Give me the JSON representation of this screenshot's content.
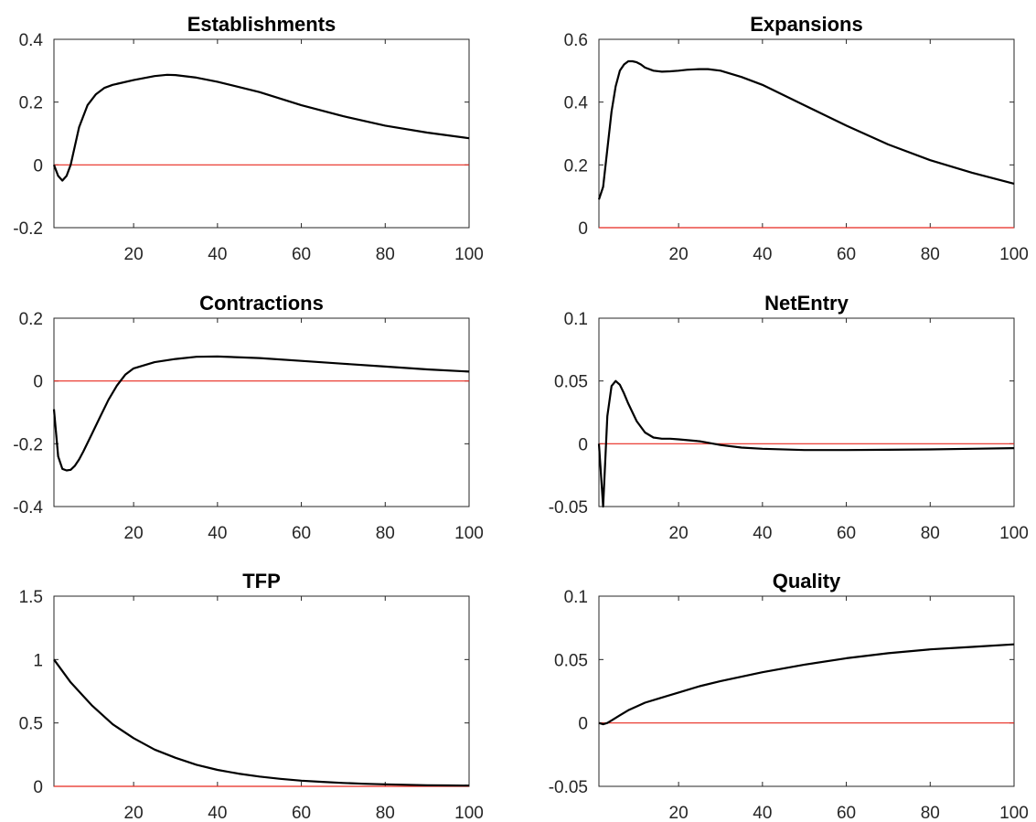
{
  "colors": {
    "series": "#000000",
    "zero_line": "#e8281e",
    "axes": "#262626"
  },
  "chart_data": [
    {
      "type": "line",
      "title": "Establishments",
      "xlim": [
        1,
        100
      ],
      "ylim": [
        -0.2,
        0.4
      ],
      "xticks": [
        20,
        40,
        60,
        80,
        100
      ],
      "yticks": [
        -0.2,
        0,
        0.2,
        0.4
      ],
      "ytick_labels": [
        "-0.2",
        "0",
        "0.2",
        "0.4"
      ],
      "reference_line": 0,
      "x": [
        1,
        2,
        3,
        4,
        5,
        7,
        9,
        11,
        13,
        15,
        20,
        25,
        28,
        30,
        35,
        40,
        50,
        60,
        70,
        80,
        90,
        100
      ],
      "y": [
        0.0,
        -0.035,
        -0.05,
        -0.035,
        0.0,
        0.12,
        0.19,
        0.225,
        0.245,
        0.255,
        0.27,
        0.283,
        0.287,
        0.286,
        0.278,
        0.265,
        0.232,
        0.19,
        0.155,
        0.125,
        0.103,
        0.085
      ]
    },
    {
      "type": "line",
      "title": "Expansions",
      "xlim": [
        1,
        100
      ],
      "ylim": [
        0,
        0.6
      ],
      "xticks": [
        20,
        40,
        60,
        80,
        100
      ],
      "yticks": [
        0,
        0.2,
        0.4,
        0.6
      ],
      "ytick_labels": [
        "0",
        "0.2",
        "0.4",
        "0.6"
      ],
      "reference_line": 0,
      "x": [
        1,
        2,
        3,
        4,
        5,
        6,
        7,
        8,
        9,
        10,
        11,
        12,
        14,
        16,
        18,
        20,
        22,
        25,
        27,
        30,
        35,
        40,
        50,
        60,
        70,
        80,
        90,
        100
      ],
      "y": [
        0.09,
        0.13,
        0.25,
        0.37,
        0.45,
        0.5,
        0.52,
        0.53,
        0.53,
        0.527,
        0.52,
        0.51,
        0.5,
        0.497,
        0.498,
        0.5,
        0.503,
        0.505,
        0.505,
        0.5,
        0.48,
        0.455,
        0.39,
        0.325,
        0.265,
        0.215,
        0.175,
        0.14
      ]
    },
    {
      "type": "line",
      "title": "Contractions",
      "xlim": [
        1,
        100
      ],
      "ylim": [
        -0.4,
        0.2
      ],
      "xticks": [
        20,
        40,
        60,
        80,
        100
      ],
      "yticks": [
        -0.4,
        -0.2,
        0,
        0.2
      ],
      "ytick_labels": [
        "-0.4",
        "-0.2",
        "0",
        "0.2"
      ],
      "reference_line": 0,
      "x": [
        1,
        2,
        3,
        4,
        5,
        6,
        7,
        8,
        10,
        12,
        14,
        16,
        18,
        20,
        25,
        30,
        35,
        40,
        50,
        60,
        70,
        80,
        90,
        100
      ],
      "y": [
        -0.09,
        -0.24,
        -0.28,
        -0.285,
        -0.283,
        -0.27,
        -0.25,
        -0.225,
        -0.17,
        -0.115,
        -0.06,
        -0.015,
        0.02,
        0.04,
        0.06,
        0.07,
        0.077,
        0.078,
        0.073,
        0.064,
        0.055,
        0.046,
        0.037,
        0.03
      ]
    },
    {
      "type": "line",
      "title": "NetEntry",
      "xlim": [
        1,
        100
      ],
      "ylim": [
        -0.05,
        0.1
      ],
      "xticks": [
        20,
        40,
        60,
        80,
        100
      ],
      "yticks": [
        -0.05,
        0,
        0.05,
        0.1
      ],
      "ytick_labels": [
        "-0.05",
        "0",
        "0.05",
        "0.1"
      ],
      "reference_line": 0,
      "x": [
        1,
        2,
        3,
        4,
        5,
        6,
        7,
        8,
        10,
        12,
        14,
        16,
        18,
        20,
        25,
        30,
        35,
        40,
        50,
        60,
        70,
        80,
        90,
        100
      ],
      "y": [
        0.0,
        -0.05,
        0.022,
        0.046,
        0.05,
        0.047,
        0.04,
        0.032,
        0.018,
        0.009,
        0.005,
        0.004,
        0.004,
        0.0035,
        0.002,
        -0.001,
        -0.003,
        -0.004,
        -0.005,
        -0.005,
        -0.0048,
        -0.0045,
        -0.004,
        -0.0035
      ]
    },
    {
      "type": "line",
      "title": "TFP",
      "xlim": [
        1,
        100
      ],
      "ylim": [
        0,
        1.5
      ],
      "xticks": [
        20,
        40,
        60,
        80,
        100
      ],
      "yticks": [
        0,
        0.5,
        1,
        1.5
      ],
      "ytick_labels": [
        "0",
        "0.5",
        "1",
        "1.5"
      ],
      "reference_line": 0,
      "x": [
        1,
        5,
        10,
        15,
        20,
        25,
        30,
        35,
        40,
        45,
        50,
        55,
        60,
        65,
        70,
        75,
        80,
        85,
        90,
        95,
        100
      ],
      "y": [
        1.0,
        0.82,
        0.64,
        0.49,
        0.38,
        0.29,
        0.225,
        0.17,
        0.13,
        0.1,
        0.077,
        0.059,
        0.045,
        0.035,
        0.027,
        0.02,
        0.016,
        0.012,
        0.009,
        0.007,
        0.006
      ]
    },
    {
      "type": "line",
      "title": "Quality",
      "xlim": [
        1,
        100
      ],
      "ylim": [
        -0.05,
        0.1
      ],
      "xticks": [
        20,
        40,
        60,
        80,
        100
      ],
      "yticks": [
        -0.05,
        0,
        0.05,
        0.1
      ],
      "ytick_labels": [
        "-0.05",
        "0",
        "0.05",
        "0.1"
      ],
      "reference_line": 0,
      "x": [
        1,
        2,
        3,
        4,
        6,
        8,
        10,
        12,
        15,
        20,
        25,
        30,
        40,
        50,
        60,
        70,
        80,
        90,
        100
      ],
      "y": [
        0.0,
        -0.001,
        0.0,
        0.002,
        0.006,
        0.01,
        0.013,
        0.016,
        0.019,
        0.024,
        0.029,
        0.033,
        0.04,
        0.046,
        0.051,
        0.055,
        0.058,
        0.06,
        0.062
      ]
    }
  ]
}
